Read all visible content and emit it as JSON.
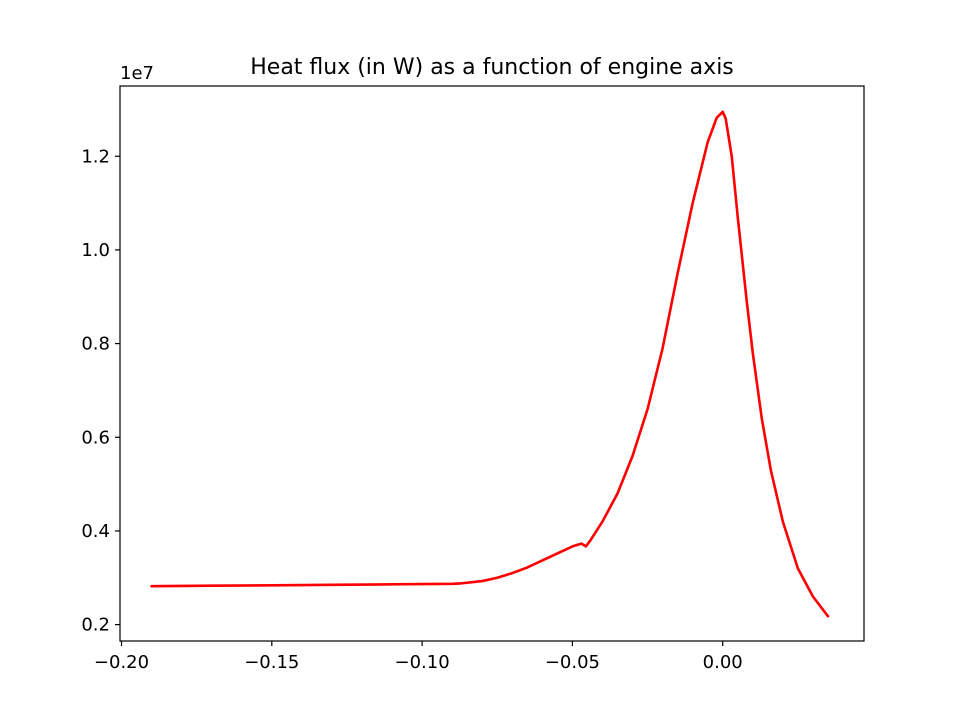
{
  "chart_data": {
    "type": "line",
    "title": "Heat flux (in W) as a function of engine axis",
    "xlabel": "",
    "ylabel": "",
    "y_offset_label": "1e7",
    "xlim": [
      -0.2005,
      0.047
    ],
    "ylim": [
      1.65,
      13.5
    ],
    "y_scale_factor": 10000000,
    "xticks": [
      -0.2,
      -0.15,
      -0.1,
      -0.05,
      0.0
    ],
    "xtick_labels": [
      "−0.20",
      "−0.15",
      "−0.10",
      "−0.05",
      "0.00"
    ],
    "yticks": [
      2,
      4,
      6,
      8,
      10,
      12
    ],
    "ytick_labels": [
      "0.2",
      "0.4",
      "0.6",
      "0.8",
      "1.0",
      "1.2"
    ],
    "grid": false,
    "series": [
      {
        "color": "#ff0000",
        "x": [
          -0.19,
          -0.17,
          -0.15,
          -0.13,
          -0.11,
          -0.09,
          -0.087,
          -0.08,
          -0.075,
          -0.07,
          -0.065,
          -0.06,
          -0.055,
          -0.05,
          -0.047,
          -0.0455,
          -0.044,
          -0.04,
          -0.035,
          -0.03,
          -0.025,
          -0.02,
          -0.015,
          -0.01,
          -0.005,
          -0.002,
          0.0,
          0.001,
          0.003,
          0.005,
          0.008,
          0.01,
          0.013,
          0.016,
          0.02,
          0.025,
          0.03,
          0.035
        ],
        "y": [
          2.82,
          2.83,
          2.84,
          2.85,
          2.86,
          2.87,
          2.88,
          2.93,
          3.0,
          3.1,
          3.22,
          3.37,
          3.52,
          3.67,
          3.73,
          3.67,
          3.8,
          4.2,
          4.8,
          5.6,
          6.6,
          7.9,
          9.5,
          11.0,
          12.3,
          12.82,
          12.95,
          12.8,
          12.0,
          10.7,
          8.9,
          7.8,
          6.4,
          5.3,
          4.2,
          3.2,
          2.6,
          2.18
        ]
      }
    ]
  }
}
